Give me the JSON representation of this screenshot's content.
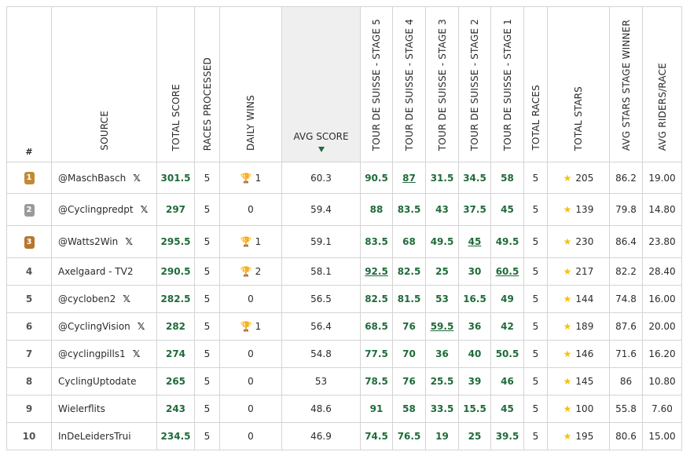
{
  "headers": {
    "rank": "#",
    "source": "SOURCE",
    "total_score": "TOTAL SCORE",
    "races_processed": "RACES PROCESSED",
    "daily_wins": "DAILY WINS",
    "avg_score": "AVG SCORE",
    "stage5": "TOUR DE SUISSE - STAGE 5",
    "stage4": "TOUR DE SUISSE - STAGE 4",
    "stage3": "TOUR DE SUISSE - STAGE 3",
    "stage2": "TOUR DE SUISSE - STAGE 2",
    "stage1": "TOUR DE SUISSE - STAGE 1",
    "total_races": "TOTAL RACES",
    "total_stars": "TOTAL STARS",
    "avg_stars_stage_winner": "AVG STARS STAGE WINNER",
    "avg_riders_race": "AVG RIDERS/RACE"
  },
  "icons": {
    "sort": "sort-down-icon",
    "x": "x-logo-icon",
    "trophy": "trophy-icon",
    "star": "star-icon",
    "medal": "medal-icon"
  },
  "colors": {
    "score_green": "#1f6b3a",
    "star_gold": "#f4c20d",
    "header_highlight": "#efefef"
  },
  "rows": [
    {
      "rank": "1",
      "medal": "1",
      "source": "@MaschBasch",
      "x": "𝕏",
      "total": "301.5",
      "races": "5",
      "wins_trophy": true,
      "wins": "1",
      "avg": "60.3",
      "s5": "90.5",
      "s4": "87",
      "s3": "31.5",
      "s2": "34.5",
      "s1": "58",
      "total_races": "5",
      "stars": "205",
      "avg_stars": "86.2",
      "avg_riders": "19.00"
    },
    {
      "rank": "2",
      "medal": "2",
      "source": "@Cyclingpredpt",
      "x": "𝕏",
      "total": "297",
      "races": "5",
      "wins_trophy": false,
      "wins": "0",
      "avg": "59.4",
      "s5": "88",
      "s4": "83.5",
      "s3": "43",
      "s2": "37.5",
      "s1": "45",
      "total_races": "5",
      "stars": "139",
      "avg_stars": "79.8",
      "avg_riders": "14.80"
    },
    {
      "rank": "3",
      "medal": "3",
      "source": "@Watts2Win",
      "x": "𝕏",
      "total": "295.5",
      "races": "5",
      "wins_trophy": true,
      "wins": "1",
      "avg": "59.1",
      "s5": "83.5",
      "s4": "68",
      "s3": "49.5",
      "s2": "45",
      "s1": "49.5",
      "total_races": "5",
      "stars": "230",
      "avg_stars": "86.4",
      "avg_riders": "23.80"
    },
    {
      "rank": "4",
      "medal": "",
      "source": "Axelgaard - TV2",
      "x": "",
      "total": "290.5",
      "races": "5",
      "wins_trophy": true,
      "wins": "2",
      "avg": "58.1",
      "s5": "92.5",
      "s4": "82.5",
      "s3": "25",
      "s2": "30",
      "s1": "60.5",
      "total_races": "5",
      "stars": "217",
      "avg_stars": "82.2",
      "avg_riders": "28.40"
    },
    {
      "rank": "5",
      "medal": "",
      "source": "@cycloben2",
      "x": "𝕏",
      "total": "282.5",
      "races": "5",
      "wins_trophy": false,
      "wins": "0",
      "avg": "56.5",
      "s5": "82.5",
      "s4": "81.5",
      "s3": "53",
      "s2": "16.5",
      "s1": "49",
      "total_races": "5",
      "stars": "144",
      "avg_stars": "74.8",
      "avg_riders": "16.00"
    },
    {
      "rank": "6",
      "medal": "",
      "source": "@CyclingVision",
      "x": "𝕏",
      "total": "282",
      "races": "5",
      "wins_trophy": true,
      "wins": "1",
      "avg": "56.4",
      "s5": "68.5",
      "s4": "76",
      "s3": "59.5",
      "s2": "36",
      "s1": "42",
      "total_races": "5",
      "stars": "189",
      "avg_stars": "87.6",
      "avg_riders": "20.00"
    },
    {
      "rank": "7",
      "medal": "",
      "source": "@cyclingpills1",
      "x": "𝕏",
      "total": "274",
      "races": "5",
      "wins_trophy": false,
      "wins": "0",
      "avg": "54.8",
      "s5": "77.5",
      "s4": "70",
      "s3": "36",
      "s2": "40",
      "s1": "50.5",
      "total_races": "5",
      "stars": "146",
      "avg_stars": "71.6",
      "avg_riders": "16.20"
    },
    {
      "rank": "8",
      "medal": "",
      "source": "CyclingUptodate",
      "x": "",
      "total": "265",
      "races": "5",
      "wins_trophy": false,
      "wins": "0",
      "avg": "53",
      "s5": "78.5",
      "s4": "76",
      "s3": "25.5",
      "s2": "39",
      "s1": "46",
      "total_races": "5",
      "stars": "145",
      "avg_stars": "86",
      "avg_riders": "10.80"
    },
    {
      "rank": "9",
      "medal": "",
      "source": "Wielerflits",
      "x": "",
      "total": "243",
      "races": "5",
      "wins_trophy": false,
      "wins": "0",
      "avg": "48.6",
      "s5": "91",
      "s4": "58",
      "s3": "33.5",
      "s2": "15.5",
      "s1": "45",
      "total_races": "5",
      "stars": "100",
      "avg_stars": "55.8",
      "avg_riders": "7.60"
    },
    {
      "rank": "10",
      "medal": "",
      "source": "InDeLeidersTrui",
      "x": "",
      "total": "234.5",
      "races": "5",
      "wins_trophy": false,
      "wins": "0",
      "avg": "46.9",
      "s5": "74.5",
      "s4": "76.5",
      "s3": "19",
      "s2": "25",
      "s1": "39.5",
      "total_races": "5",
      "stars": "195",
      "avg_stars": "80.6",
      "avg_riders": "15.00"
    }
  ],
  "stage_winners": {
    "s5": [
      "4"
    ],
    "s4": [
      "1"
    ],
    "s3": [
      "6"
    ],
    "s2": [
      "3"
    ],
    "s1": [
      "4"
    ]
  }
}
